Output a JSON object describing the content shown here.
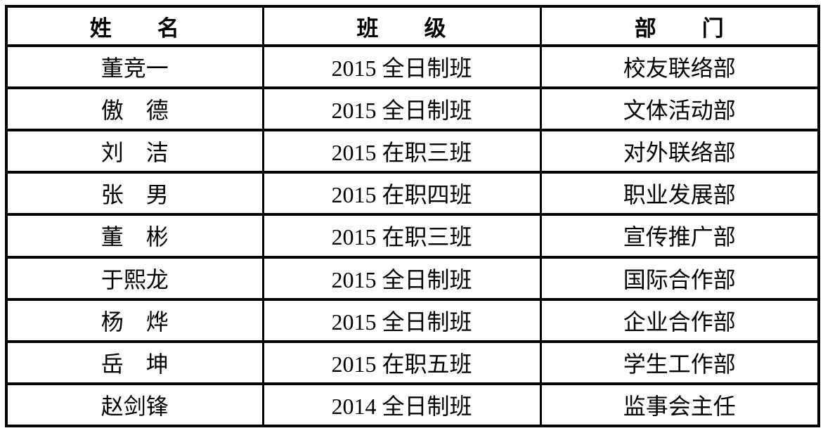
{
  "table": {
    "headers": {
      "name": "姓　　名",
      "class": "班　　级",
      "department": "部　　门"
    },
    "rows": [
      {
        "name": "董竞一",
        "class": "2015 全日制班",
        "department": "校友联络部"
      },
      {
        "name": "傲　德",
        "class": "2015 全日制班",
        "department": "文体活动部"
      },
      {
        "name": "刘　洁",
        "class": "2015 在职三班",
        "department": "对外联络部"
      },
      {
        "name": "张　男",
        "class": "2015 在职四班",
        "department": "职业发展部"
      },
      {
        "name": "董　彬",
        "class": "2015 在职三班",
        "department": "宣传推广部"
      },
      {
        "name": "于熙龙",
        "class": "2015 全日制班",
        "department": "国际合作部"
      },
      {
        "name": "杨　烨",
        "class": "2015 全日制班",
        "department": "企业合作部"
      },
      {
        "name": "岳　坤",
        "class": "2015 在职五班",
        "department": "学生工作部"
      },
      {
        "name": "赵剑锋",
        "class": "2014 全日制班",
        "department": "监事会主任"
      }
    ],
    "colors": {
      "border": "#000000",
      "text": "#000000",
      "background": "#ffffff"
    }
  }
}
